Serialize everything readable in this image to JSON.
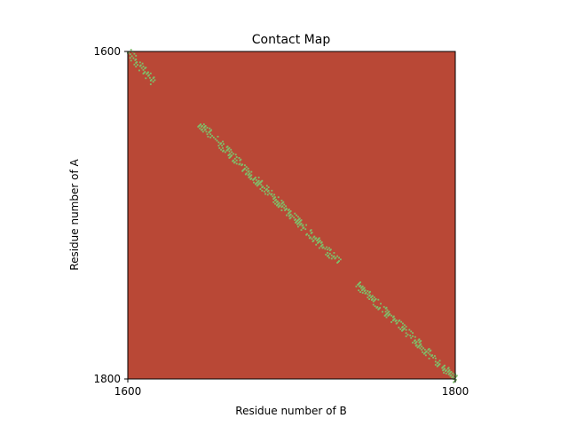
{
  "chart_data": {
    "type": "heatmap",
    "title": "Contact Map",
    "xlabel": "Residue number of B",
    "ylabel": "Residue number of A",
    "xlim": [
      1600,
      1800
    ],
    "ylim": [
      1800,
      1600
    ],
    "xticks": [
      {
        "value": 1600,
        "label": "1600"
      },
      {
        "value": 1800,
        "label": "1800"
      }
    ],
    "yticks": [
      {
        "value": 1600,
        "label": "1600"
      },
      {
        "value": 1800,
        "label": "1800"
      }
    ],
    "grid": false,
    "colors": {
      "no_contact": "#b94836",
      "contact": "#7fbf6a"
    },
    "diagonal_segments": [
      {
        "b_start": 1600,
        "b_end": 1615,
        "a_start": 1600,
        "a_end": 1618
      },
      {
        "b_start": 1644,
        "b_end": 1680,
        "a_start": 1644,
        "a_end": 1680
      },
      {
        "b_start": 1680,
        "b_end": 1728,
        "a_start": 1680,
        "a_end": 1728
      },
      {
        "b_start": 1740,
        "b_end": 1800,
        "a_start": 1742,
        "a_end": 1800
      }
    ],
    "contact_band_width": 3
  }
}
